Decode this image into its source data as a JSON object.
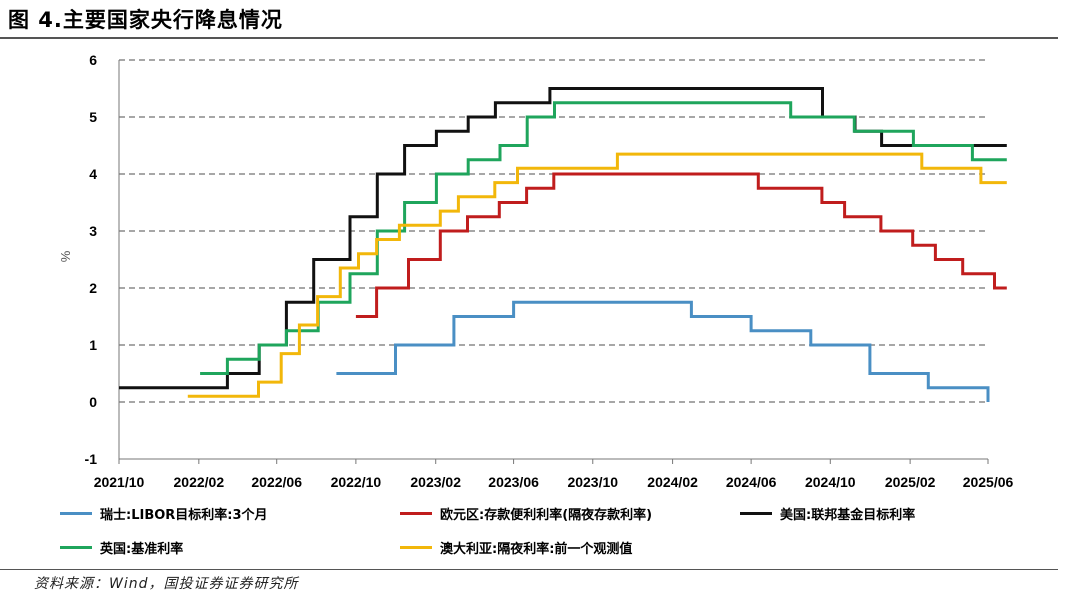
{
  "figure": {
    "title": "图 4.主要国家央行降息情况",
    "source": "资料来源：Wind，国投证券证券研究所"
  },
  "chart_data": {
    "type": "line",
    "step": true,
    "xlabel": "",
    "ylabel": "%",
    "ylim": [
      -1,
      6
    ],
    "yticks": [
      -1,
      0,
      1,
      2,
      3,
      4,
      5,
      6
    ],
    "xlim": [
      "2021-10",
      "2025-06"
    ],
    "xticks": [
      "2021/10",
      "2022/02",
      "2022/06",
      "2022/10",
      "2023/02",
      "2023/06",
      "2023/10",
      "2024/02",
      "2024/06",
      "2024/10",
      "2025/02",
      "2025/06"
    ],
    "grid": "horizontal dashed",
    "legend_position": "bottom",
    "series": [
      {
        "name": "瑞士:LIBOR目标利率:3个月",
        "color": "#4a8fc4",
        "points": [
          [
            "2022-09-01",
            0.5
          ],
          [
            "2022-12-01",
            1.0
          ],
          [
            "2023-03-01",
            1.5
          ],
          [
            "2023-06-01",
            1.75
          ],
          [
            "2024-03-01",
            1.5
          ],
          [
            "2024-06-01",
            1.25
          ],
          [
            "2024-09-01",
            1.0
          ],
          [
            "2024-12-01",
            0.5
          ],
          [
            "2025-03-01",
            0.25
          ],
          [
            "2025-06-01",
            0.0
          ]
        ]
      },
      {
        "name": "欧元区:存款便利利率(隔夜存款利率)",
        "color": "#c01d1d",
        "points": [
          [
            "2022-10-01",
            1.5
          ],
          [
            "2022-11-02",
            2.0
          ],
          [
            "2022-12-21",
            2.5
          ],
          [
            "2023-02-08",
            3.0
          ],
          [
            "2023-03-22",
            3.25
          ],
          [
            "2023-05-10",
            3.5
          ],
          [
            "2023-06-21",
            3.75
          ],
          [
            "2023-08-02",
            4.0
          ],
          [
            "2024-06-12",
            3.75
          ],
          [
            "2024-09-18",
            3.5
          ],
          [
            "2024-10-23",
            3.25
          ],
          [
            "2024-12-18",
            3.0
          ],
          [
            "2025-02-05",
            2.75
          ],
          [
            "2025-03-12",
            2.5
          ],
          [
            "2025-04-23",
            2.25
          ],
          [
            "2025-06-11",
            2.0
          ],
          [
            "2025-06-30",
            2.0
          ]
        ]
      },
      {
        "name": "美国:联邦基金目标利率",
        "color": "#111111",
        "points": [
          [
            "2021-10-01",
            0.25
          ],
          [
            "2022-03-17",
            0.5
          ],
          [
            "2022-05-05",
            1.0
          ],
          [
            "2022-06-16",
            1.75
          ],
          [
            "2022-07-28",
            2.5
          ],
          [
            "2022-09-22",
            3.25
          ],
          [
            "2022-11-03",
            4.0
          ],
          [
            "2022-12-15",
            4.5
          ],
          [
            "2023-02-02",
            4.75
          ],
          [
            "2023-03-23",
            5.0
          ],
          [
            "2023-05-04",
            5.25
          ],
          [
            "2023-07-27",
            5.5
          ],
          [
            "2024-09-19",
            5.0
          ],
          [
            "2024-11-08",
            4.75
          ],
          [
            "2024-12-19",
            4.5
          ],
          [
            "2025-06-30",
            4.5
          ]
        ]
      },
      {
        "name": "英国:基准利率",
        "color": "#1fa55c",
        "points": [
          [
            "2022-02-03",
            0.5
          ],
          [
            "2022-03-17",
            0.75
          ],
          [
            "2022-05-05",
            1.0
          ],
          [
            "2022-06-16",
            1.25
          ],
          [
            "2022-08-04",
            1.75
          ],
          [
            "2022-09-22",
            2.25
          ],
          [
            "2022-11-03",
            3.0
          ],
          [
            "2022-12-15",
            3.5
          ],
          [
            "2023-02-02",
            4.0
          ],
          [
            "2023-03-23",
            4.25
          ],
          [
            "2023-05-11",
            4.5
          ],
          [
            "2023-06-22",
            5.0
          ],
          [
            "2023-08-03",
            5.25
          ],
          [
            "2024-08-01",
            5.0
          ],
          [
            "2024-11-07",
            4.75
          ],
          [
            "2025-02-06",
            4.5
          ],
          [
            "2025-05-08",
            4.25
          ],
          [
            "2025-06-30",
            4.25
          ]
        ]
      },
      {
        "name": "澳大利亚:隔夜利率:前一个观测值",
        "color": "#f2b70a",
        "points": [
          [
            "2022-01-15",
            0.1
          ],
          [
            "2022-05-04",
            0.35
          ],
          [
            "2022-06-08",
            0.85
          ],
          [
            "2022-07-06",
            1.35
          ],
          [
            "2022-08-03",
            1.85
          ],
          [
            "2022-09-07",
            2.35
          ],
          [
            "2022-10-05",
            2.6
          ],
          [
            "2022-11-02",
            2.85
          ],
          [
            "2022-12-07",
            3.1
          ],
          [
            "2023-02-08",
            3.35
          ],
          [
            "2023-03-08",
            3.6
          ],
          [
            "2023-05-03",
            3.85
          ],
          [
            "2023-06-07",
            4.1
          ],
          [
            "2023-11-08",
            4.35
          ],
          [
            "2025-02-19",
            4.1
          ],
          [
            "2025-05-21",
            3.85
          ],
          [
            "2025-06-30",
            3.85
          ]
        ]
      }
    ]
  }
}
